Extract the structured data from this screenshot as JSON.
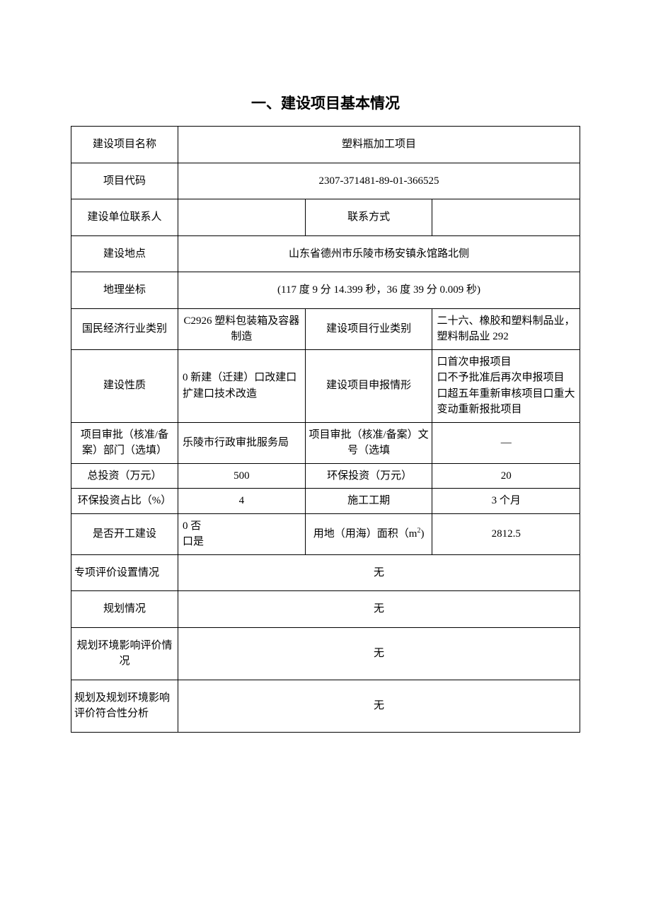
{
  "title": "一、建设项目基本情况",
  "rows": {
    "r1": {
      "label": "建设项目名称",
      "value": "塑料瓶加工项目"
    },
    "r2": {
      "label": "项目代码",
      "value": "2307-371481-89-01-366525"
    },
    "r3": {
      "label1": "建设单位联系人",
      "value1": "",
      "label2": "联系方式",
      "value2": ""
    },
    "r4": {
      "label": "建设地点",
      "value": "山东省德州市乐陵市杨安镇永馆路北侧"
    },
    "r5": {
      "label": "地理坐标",
      "value": "(117 度 9 分 14.399 秒，36 度 39 分 0.009 秒)"
    },
    "r6": {
      "label1": "国民经济行业类别",
      "value1": "C2926 塑料包装箱及容器制造",
      "label2": "建设项目行业类别",
      "value2": "二十六、橡胶和塑料制品业，塑料制品业 292"
    },
    "r7": {
      "label1": "建设性质",
      "value1": "0 新建（迁建）口改建口扩建口技术改造",
      "label2": "建设项目申报情形",
      "value2": "口首次申报项目\n口不予批准后再次申报项目\n口超五年重新审核项目口重大变动重新报批项目"
    },
    "r8": {
      "label1": "项目审批（核准/备案）部门（选填）",
      "value1": "乐陵市行政审批服务局",
      "label2": "项目审批（核准/备案）文号（选填",
      "value2": "—"
    },
    "r9": {
      "label1": "总投资（万元）",
      "value1": "500",
      "label2": "环保投资（万元）",
      "value2": "20"
    },
    "r10": {
      "label1": "环保投资占比（%）",
      "value1": "4",
      "label2": "施工工期",
      "value2": "3 个月"
    },
    "r11": {
      "label1": "是否开工建设",
      "value1": "0 否\n口是",
      "label2_prefix": "用地（用海）面积（m",
      "label2_suffix": ")",
      "value2": "2812.5"
    },
    "r12": {
      "label": "专项评价设置情况",
      "value": "无"
    },
    "r13": {
      "label": "规划情况",
      "value": "无"
    },
    "r14": {
      "label": "规划环境影响评价情况",
      "value": "无"
    },
    "r15": {
      "label": "规划及规划环境影响评价符合性分析",
      "value": "无"
    }
  }
}
